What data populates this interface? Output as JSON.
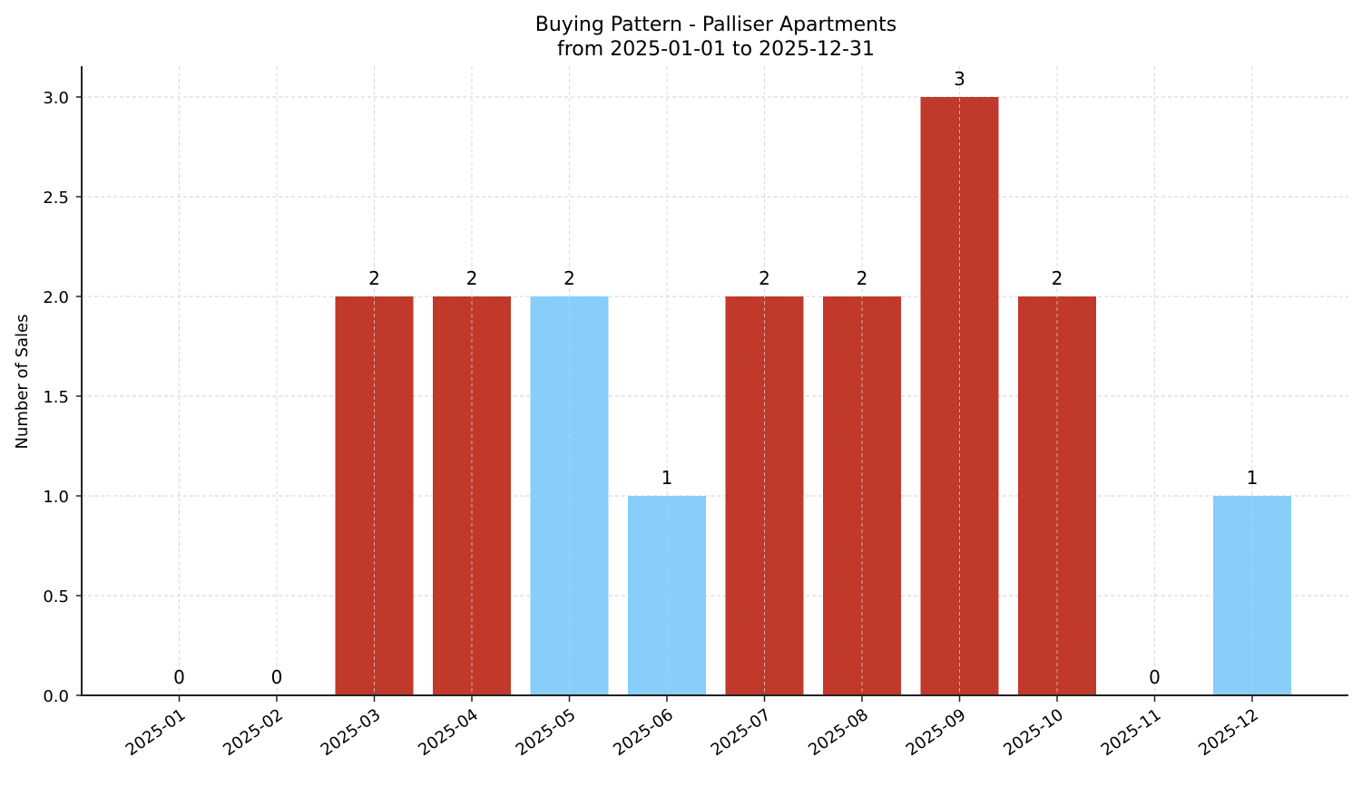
{
  "chart_data": {
    "type": "bar",
    "title": "Buying Pattern - Palliser Apartments",
    "subtitle": "from 2025-01-01 to 2025-12-31",
    "xlabel": "",
    "ylabel": "Number of Sales",
    "ylim": [
      0,
      3.15
    ],
    "yticks": [
      "0.0",
      "0.5",
      "1.0",
      "1.5",
      "2.0",
      "2.5",
      "3.0"
    ],
    "grid": true,
    "categories": [
      "2025-01",
      "2025-02",
      "2025-03",
      "2025-04",
      "2025-05",
      "2025-06",
      "2025-07",
      "2025-08",
      "2025-09",
      "2025-10",
      "2025-11",
      "2025-12"
    ],
    "values": [
      0,
      0,
      2,
      2,
      2,
      1,
      2,
      2,
      3,
      2,
      0,
      1
    ],
    "bar_colors": [
      "#c0392b",
      "#c0392b",
      "#c0392b",
      "#c0392b",
      "#87cefa",
      "#87cefa",
      "#c0392b",
      "#c0392b",
      "#c0392b",
      "#c0392b",
      "#c0392b",
      "#87cefa"
    ],
    "data_labels": [
      "0",
      "0",
      "2",
      "2",
      "2",
      "1",
      "2",
      "2",
      "3",
      "2",
      "0",
      "1"
    ]
  },
  "colors": {
    "high": "#c0392b",
    "low": "#87cefa",
    "grid": "#d0d0d0",
    "axis": "#222222"
  }
}
